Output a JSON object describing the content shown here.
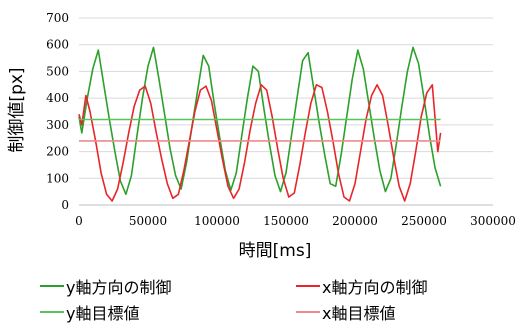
{
  "chart_data": {
    "type": "line",
    "xlabel": "時間[ms]",
    "ylabel": "制御値[px]",
    "xlim": [
      0,
      300000
    ],
    "ylim": [
      0,
      700
    ],
    "xticks": [
      0,
      50000,
      100000,
      150000,
      200000,
      250000,
      300000
    ],
    "yticks": [
      0,
      100,
      200,
      300,
      400,
      500,
      600,
      700
    ],
    "grid": "horizontal",
    "legend_position": "bottom",
    "series": [
      {
        "name": "y軸方向の制御",
        "color": "#2ca02c",
        "x": [
          0,
          2000,
          6000,
          10000,
          14000,
          18000,
          22000,
          26000,
          30000,
          34000,
          38000,
          42000,
          46000,
          50000,
          54000,
          58000,
          62000,
          66000,
          70000,
          74000,
          78000,
          82000,
          86000,
          90000,
          94000,
          98000,
          102000,
          106000,
          110000,
          114000,
          118000,
          122000,
          126000,
          130000,
          134000,
          138000,
          142000,
          146000,
          150000,
          154000,
          158000,
          162000,
          166000,
          170000,
          174000,
          178000,
          182000,
          186000,
          190000,
          194000,
          198000,
          202000,
          206000,
          210000,
          214000,
          218000,
          222000,
          226000,
          230000,
          234000,
          238000,
          242000,
          246000,
          250000,
          254000,
          258000,
          262000
        ],
        "y": [
          330,
          270,
          400,
          510,
          580,
          450,
          320,
          200,
          90,
          40,
          110,
          260,
          400,
          520,
          590,
          470,
          340,
          210,
          110,
          60,
          160,
          300,
          430,
          560,
          520,
          380,
          250,
          130,
          55,
          120,
          260,
          400,
          520,
          500,
          360,
          230,
          110,
          50,
          120,
          260,
          400,
          540,
          570,
          440,
          310,
          190,
          80,
          70,
          190,
          330,
          470,
          580,
          510,
          380,
          250,
          130,
          50,
          100,
          230,
          370,
          500,
          590,
          530,
          400,
          260,
          140,
          70
        ]
      },
      {
        "name": "x軸方向の制御",
        "color": "#e8262a",
        "x": [
          0,
          2000,
          5000,
          8000,
          12000,
          16000,
          20000,
          24000,
          28000,
          32000,
          36000,
          40000,
          44000,
          48000,
          52000,
          56000,
          60000,
          64000,
          68000,
          72000,
          76000,
          80000,
          84000,
          88000,
          92000,
          96000,
          100000,
          104000,
          108000,
          112000,
          116000,
          120000,
          124000,
          128000,
          132000,
          136000,
          140000,
          144000,
          148000,
          152000,
          156000,
          160000,
          164000,
          168000,
          172000,
          176000,
          180000,
          184000,
          188000,
          192000,
          196000,
          200000,
          204000,
          208000,
          212000,
          216000,
          220000,
          224000,
          228000,
          232000,
          236000,
          240000,
          244000,
          248000,
          252000,
          256000,
          260000,
          262000
        ],
        "y": [
          340,
          300,
          410,
          350,
          240,
          120,
          40,
          15,
          60,
          160,
          270,
          370,
          430,
          445,
          380,
          270,
          170,
          80,
          25,
          40,
          130,
          240,
          350,
          430,
          445,
          390,
          280,
          170,
          70,
          25,
          60,
          160,
          280,
          380,
          450,
          430,
          330,
          210,
          100,
          30,
          45,
          150,
          270,
          380,
          450,
          440,
          350,
          240,
          120,
          30,
          15,
          80,
          200,
          320,
          410,
          450,
          410,
          300,
          180,
          70,
          15,
          80,
          200,
          330,
          420,
          450,
          200,
          270
        ]
      },
      {
        "name": "y軸目標値",
        "color": "#5cc25c",
        "x": [
          0,
          262000
        ],
        "y": [
          320,
          320
        ]
      },
      {
        "name": "x軸目標値",
        "color": "#ef8a8a",
        "x": [
          0,
          262000
        ],
        "y": [
          240,
          240
        ]
      }
    ]
  },
  "legend_items": [
    "y軸方向の制御",
    "x軸方向の制御",
    "y軸目標値",
    "x軸目標値"
  ]
}
